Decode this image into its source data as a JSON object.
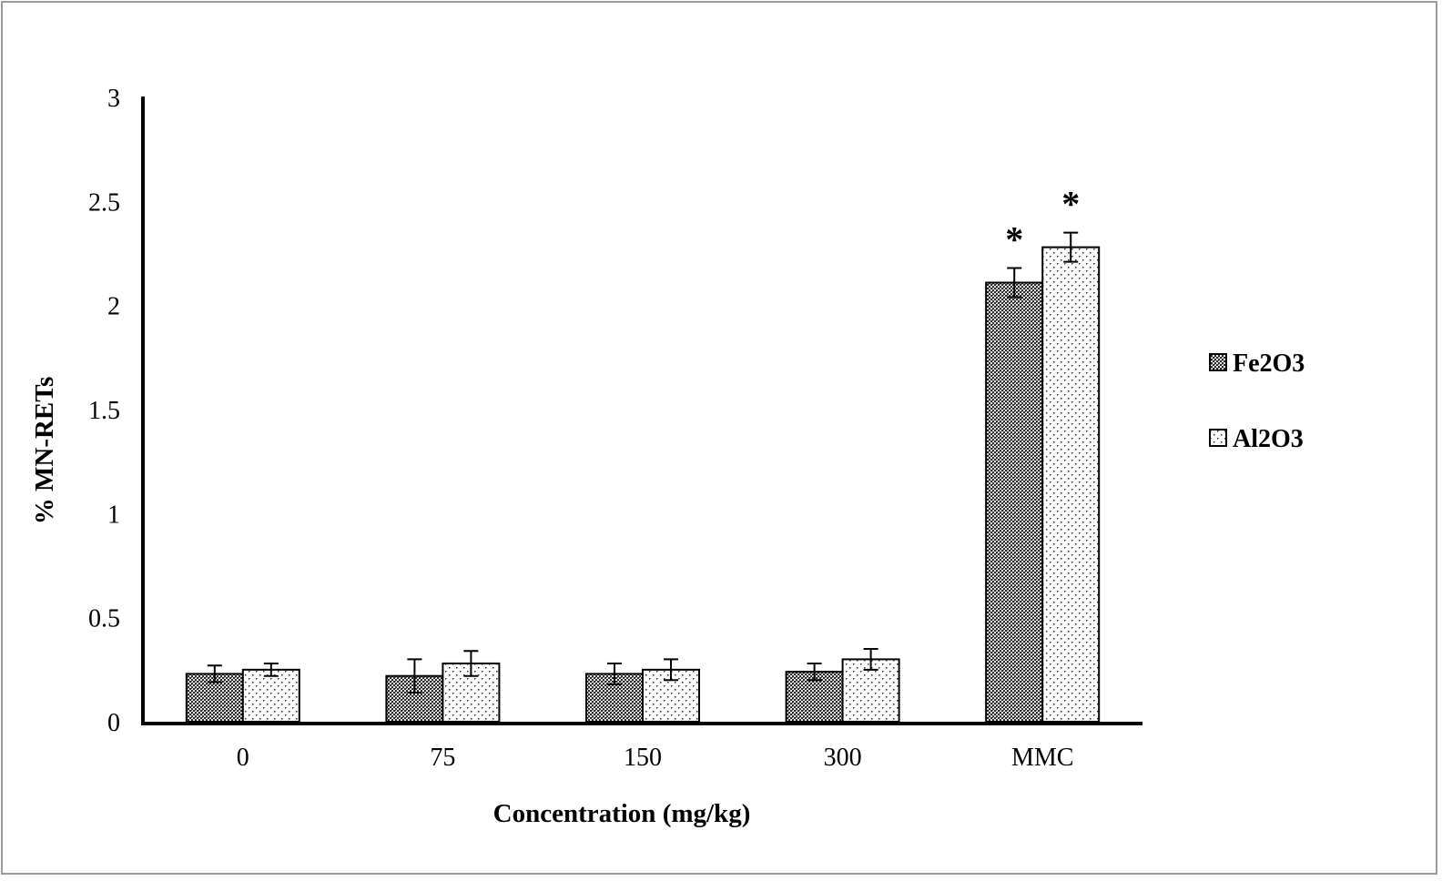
{
  "chart_data": {
    "type": "bar",
    "xlabel": "Concentration (mg/kg)",
    "ylabel": "% MN-RETs",
    "categories": [
      "0",
      "75",
      "150",
      "300",
      "MMC"
    ],
    "ylim": [
      0,
      3
    ],
    "yticks": [
      0,
      0.5,
      1,
      1.5,
      2,
      2.5,
      3
    ],
    "ytick_labels": [
      "0",
      "0.5",
      "1",
      "1.5",
      "2",
      "2.5",
      "3"
    ],
    "grid": false,
    "legend_position": "right",
    "series": [
      {
        "name": "Fe2O3",
        "values": [
          0.23,
          0.22,
          0.23,
          0.24,
          2.11
        ],
        "errors": [
          0.04,
          0.08,
          0.05,
          0.04,
          0.07
        ],
        "annotations": [
          "",
          "",
          "",
          "",
          "*"
        ],
        "pattern": "dense-dots",
        "color": "#555555"
      },
      {
        "name": "Al2O3",
        "values": [
          0.25,
          0.28,
          0.25,
          0.3,
          2.28
        ],
        "errors": [
          0.03,
          0.06,
          0.05,
          0.05,
          0.07
        ],
        "annotations": [
          "",
          "",
          "",
          "",
          "*"
        ],
        "pattern": "sparse-dots",
        "color": "#ffffff"
      }
    ]
  }
}
